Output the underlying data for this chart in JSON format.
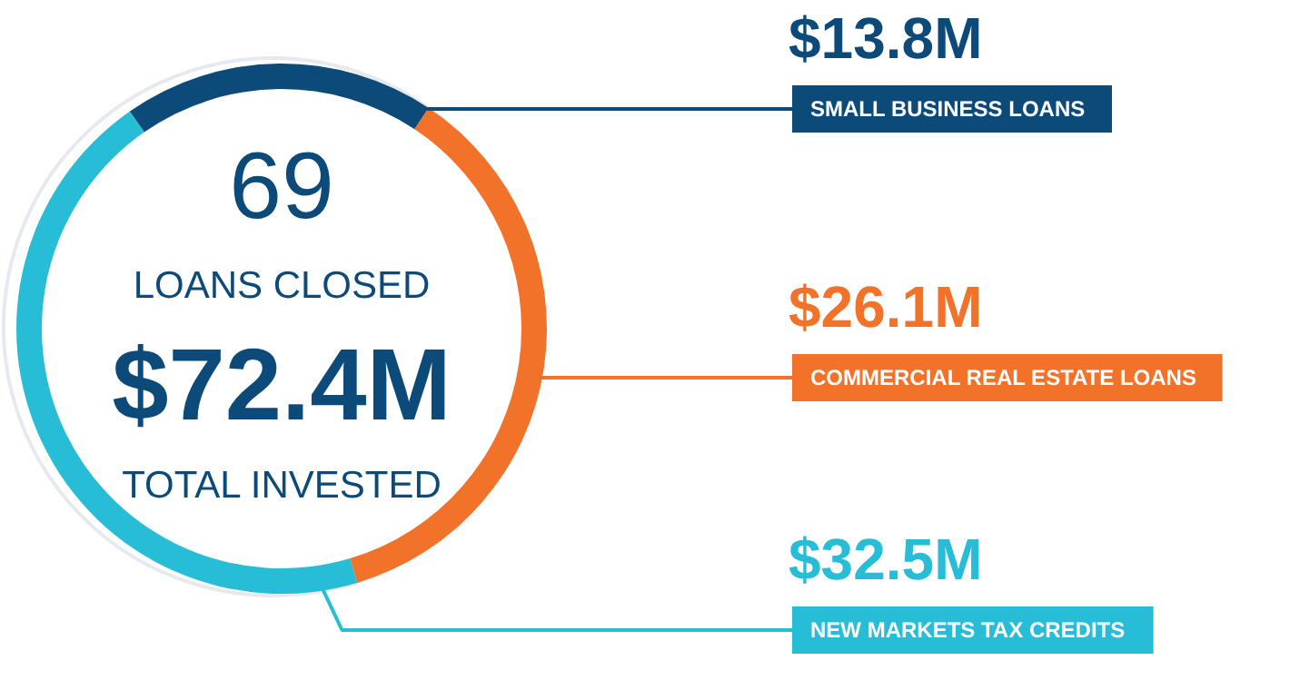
{
  "chart_data": {
    "type": "donut",
    "categories": [
      "SMALL BUSINESS LOANS",
      "COMMERCIAL REAL ESTATE LOANS",
      "NEW MARKETS TAX CREDITS"
    ],
    "values": [
      13.8,
      26.1,
      32.5
    ],
    "colors": [
      "#0c4a7a",
      "#f2722a",
      "#27bdd6"
    ],
    "value_labels": [
      "$13.8M",
      "$26.1M",
      "$32.5M"
    ],
    "annotations": [
      "69",
      "LOANS CLOSED",
      "$72.4M",
      "TOTAL INVESTED"
    ]
  }
}
